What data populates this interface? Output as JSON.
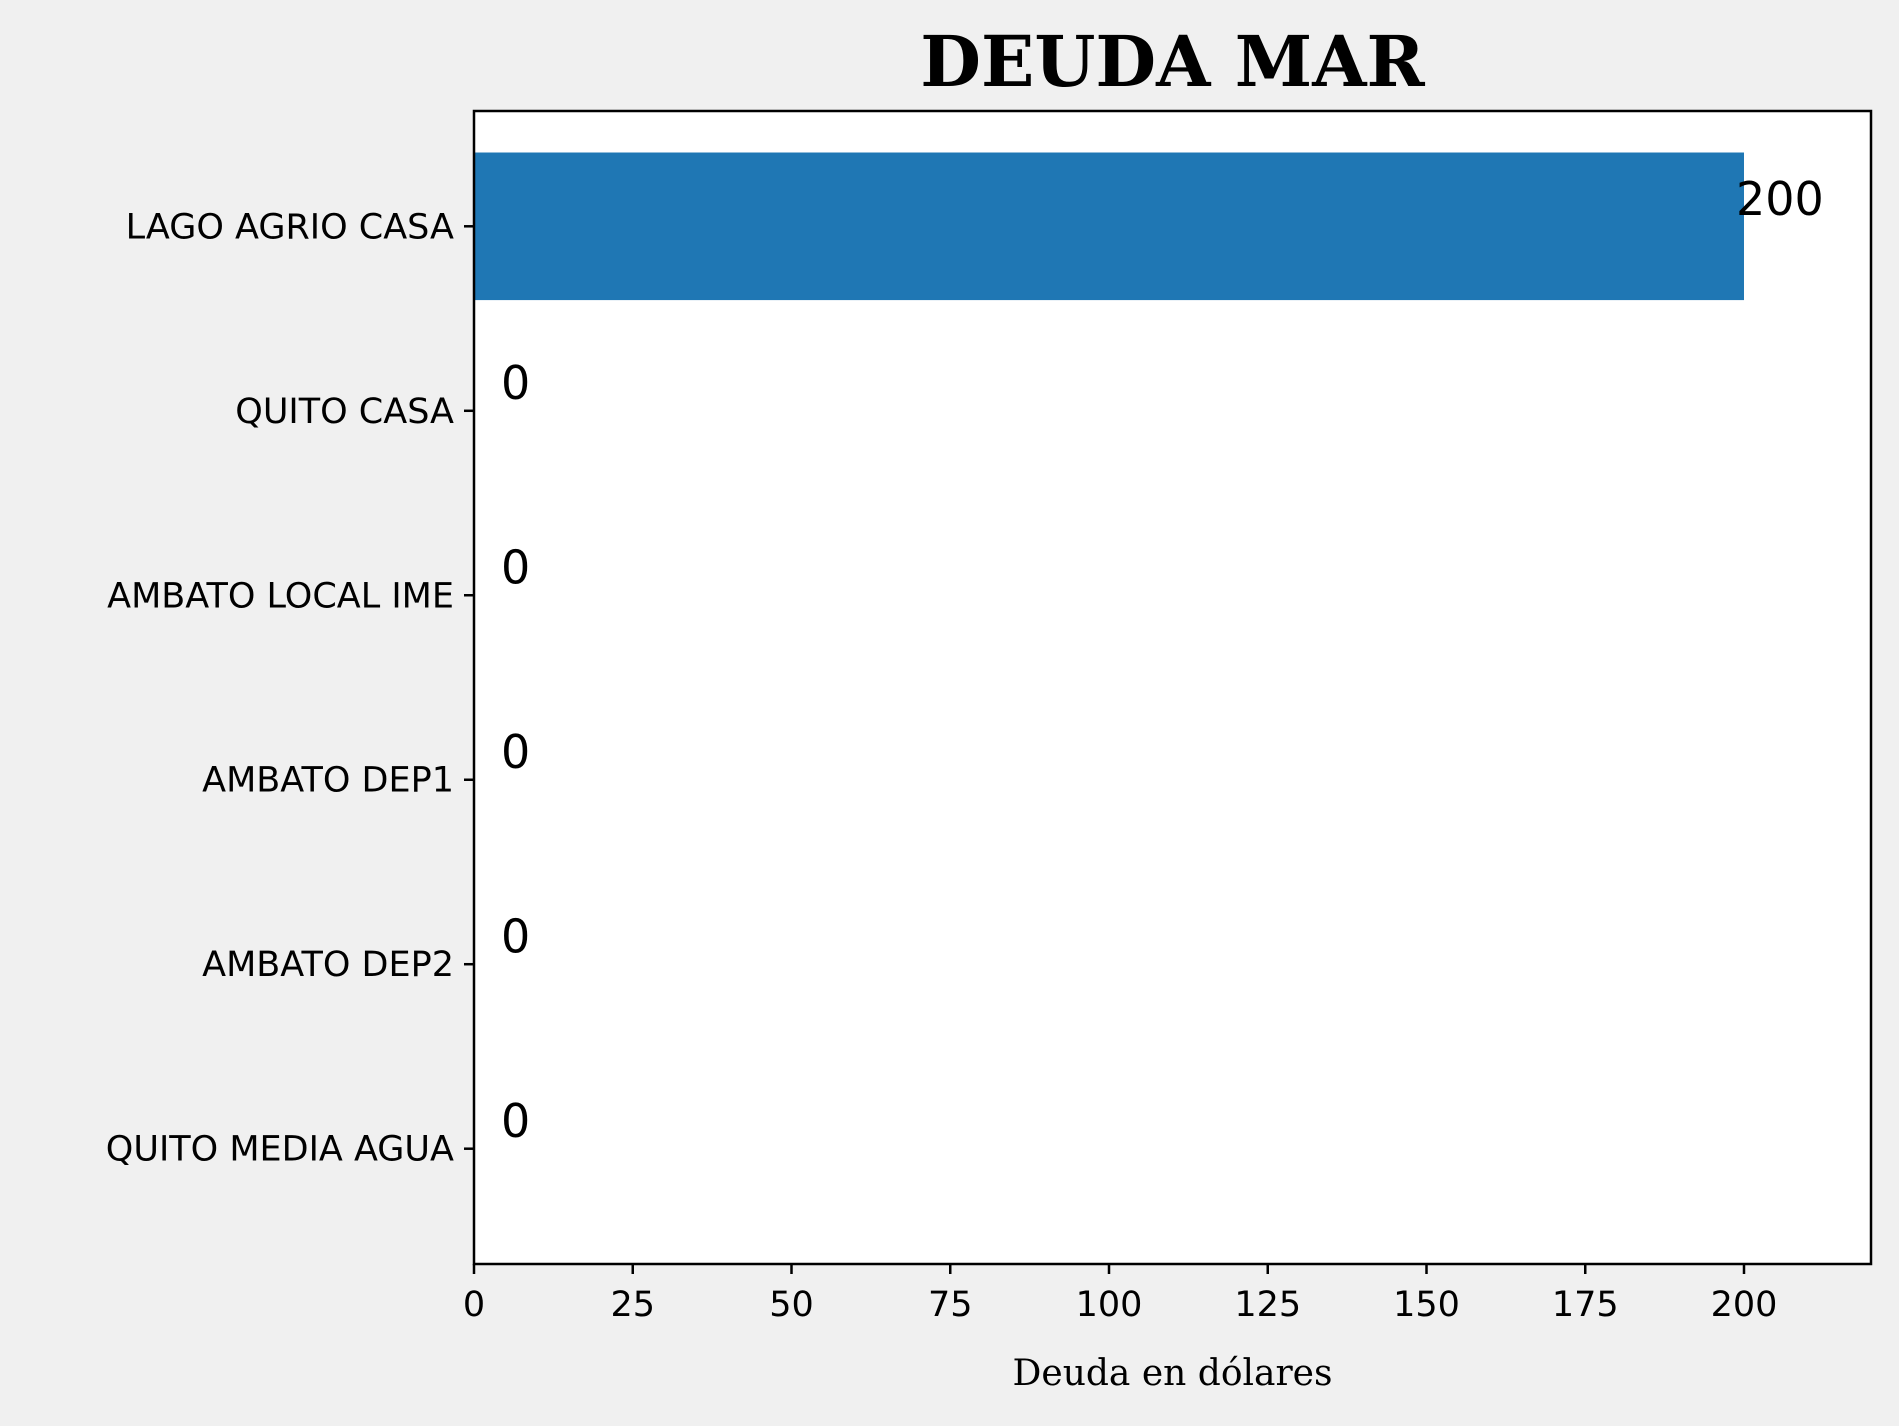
{
  "chart_data": {
    "type": "bar",
    "orientation": "horizontal",
    "title": "DEUDA MAR",
    "xlabel": "Deuda en dólares",
    "ylabel": "",
    "categories": [
      "LAGO AGRIO CASA",
      "QUITO CASA",
      "AMBATO LOCAL IME",
      "AMBATO DEP1",
      "AMBATO DEP2",
      "QUITO MEDIA AGUA"
    ],
    "values": [
      200,
      0,
      0,
      0,
      0,
      0
    ],
    "value_labels": [
      "200",
      "0",
      "0",
      "0",
      "0",
      "0"
    ],
    "xlim": [
      0,
      220
    ],
    "xticks": [
      0,
      25,
      50,
      75,
      100,
      125,
      150,
      175,
      200
    ],
    "xtick_labels": [
      "0",
      "25",
      "50",
      "75",
      "100",
      "125",
      "150",
      "175",
      "200"
    ],
    "bar_color": "#1f77b4",
    "grid": false,
    "legend": "none"
  }
}
